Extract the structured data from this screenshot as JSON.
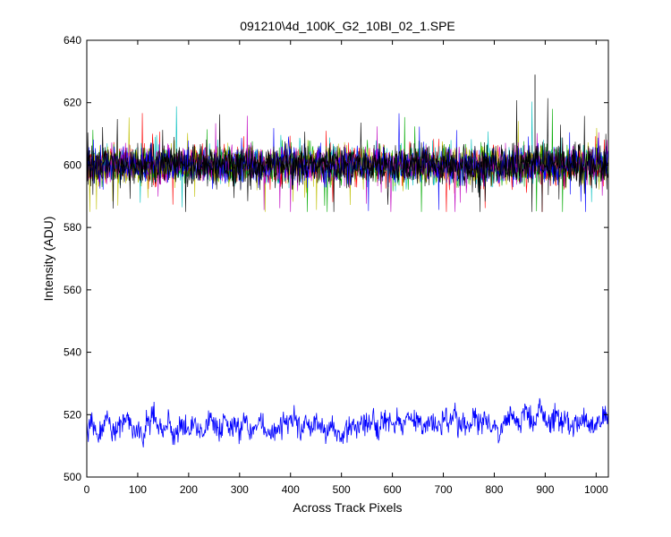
{
  "chart_data": {
    "type": "line",
    "title": "091210\\4d_100K_G2_10BI_02_1.SPE",
    "xlabel": "Across Track Pixels",
    "ylabel": "Intensity (ADU)",
    "xlim": [
      0,
      1024
    ],
    "ylim": [
      500,
      640
    ],
    "xticks": [
      0,
      100,
      200,
      300,
      400,
      500,
      600,
      700,
      800,
      900,
      1000
    ],
    "yticks": [
      500,
      520,
      540,
      560,
      580,
      600,
      620,
      640
    ],
    "grid": false,
    "legend": "none",
    "series": [
      {
        "color": "#0000ff",
        "description": "single low-intensity frame, noisy trace",
        "points": [
          [
            0,
            514
          ],
          [
            10,
            518
          ],
          [
            20,
            512
          ],
          [
            30,
            515
          ],
          [
            40,
            519
          ],
          [
            50,
            513
          ],
          [
            60,
            516
          ],
          [
            70,
            517
          ],
          [
            80,
            520
          ],
          [
            90,
            514
          ],
          [
            100,
            515
          ],
          [
            110,
            513
          ],
          [
            120,
            518
          ],
          [
            130,
            521
          ],
          [
            140,
            516
          ],
          [
            150,
            514
          ],
          [
            160,
            519
          ],
          [
            170,
            513
          ],
          [
            180,
            515
          ],
          [
            190,
            517
          ],
          [
            200,
            514
          ],
          [
            210,
            518
          ],
          [
            220,
            516
          ],
          [
            230,
            515
          ],
          [
            240,
            519
          ],
          [
            250,
            517
          ],
          [
            260,
            514
          ],
          [
            270,
            518
          ],
          [
            280,
            516
          ],
          [
            290,
            517
          ],
          [
            300,
            515
          ],
          [
            310,
            519
          ],
          [
            320,
            514
          ],
          [
            330,
            516
          ],
          [
            340,
            518
          ],
          [
            350,
            515
          ],
          [
            360,
            513
          ],
          [
            370,
            517
          ],
          [
            380,
            515
          ],
          [
            390,
            518
          ],
          [
            400,
            516
          ],
          [
            410,
            521
          ],
          [
            420,
            514
          ],
          [
            430,
            517
          ],
          [
            440,
            515
          ],
          [
            450,
            519
          ],
          [
            460,
            516
          ],
          [
            470,
            513
          ],
          [
            480,
            518
          ],
          [
            490,
            514
          ],
          [
            500,
            512
          ],
          [
            510,
            515
          ],
          [
            520,
            517
          ],
          [
            530,
            514
          ],
          [
            540,
            519
          ],
          [
            550,
            516
          ],
          [
            560,
            520
          ],
          [
            570,
            515
          ],
          [
            580,
            517
          ],
          [
            590,
            519
          ],
          [
            600,
            516
          ],
          [
            610,
            518
          ],
          [
            620,
            515
          ],
          [
            630,
            521
          ],
          [
            640,
            517
          ],
          [
            650,
            519
          ],
          [
            660,
            514
          ],
          [
            670,
            518
          ],
          [
            680,
            517
          ],
          [
            690,
            515
          ],
          [
            700,
            519
          ],
          [
            710,
            517
          ],
          [
            720,
            521
          ],
          [
            730,
            516
          ],
          [
            740,
            518
          ],
          [
            750,
            515
          ],
          [
            760,
            520
          ],
          [
            770,
            517
          ],
          [
            780,
            519
          ],
          [
            790,
            516
          ],
          [
            800,
            518
          ],
          [
            810,
            514
          ],
          [
            820,
            517
          ],
          [
            830,
            521
          ],
          [
            840,
            519
          ],
          [
            850,
            516
          ],
          [
            860,
            522
          ],
          [
            870,
            519
          ],
          [
            880,
            517
          ],
          [
            890,
            523
          ],
          [
            900,
            518
          ],
          [
            910,
            516
          ],
          [
            920,
            520
          ],
          [
            930,
            517
          ],
          [
            940,
            519
          ],
          [
            950,
            515
          ],
          [
            960,
            518
          ],
          [
            970,
            517
          ],
          [
            980,
            519
          ],
          [
            990,
            516
          ],
          [
            1000,
            518
          ],
          [
            1010,
            517
          ],
          [
            1020,
            519
          ],
          [
            1024,
            518
          ]
        ]
      },
      {
        "description": "overlapping higher-intensity frames centered near 600",
        "colors": [
          "#000000",
          "#ff0000",
          "#00bfbf",
          "#00aa00",
          "#bfbf00",
          "#bf00bf",
          "#0000ff"
        ],
        "center": 600,
        "envelope": [
          588,
          612
        ],
        "max_spike": 629,
        "min_spike": 585
      }
    ]
  }
}
